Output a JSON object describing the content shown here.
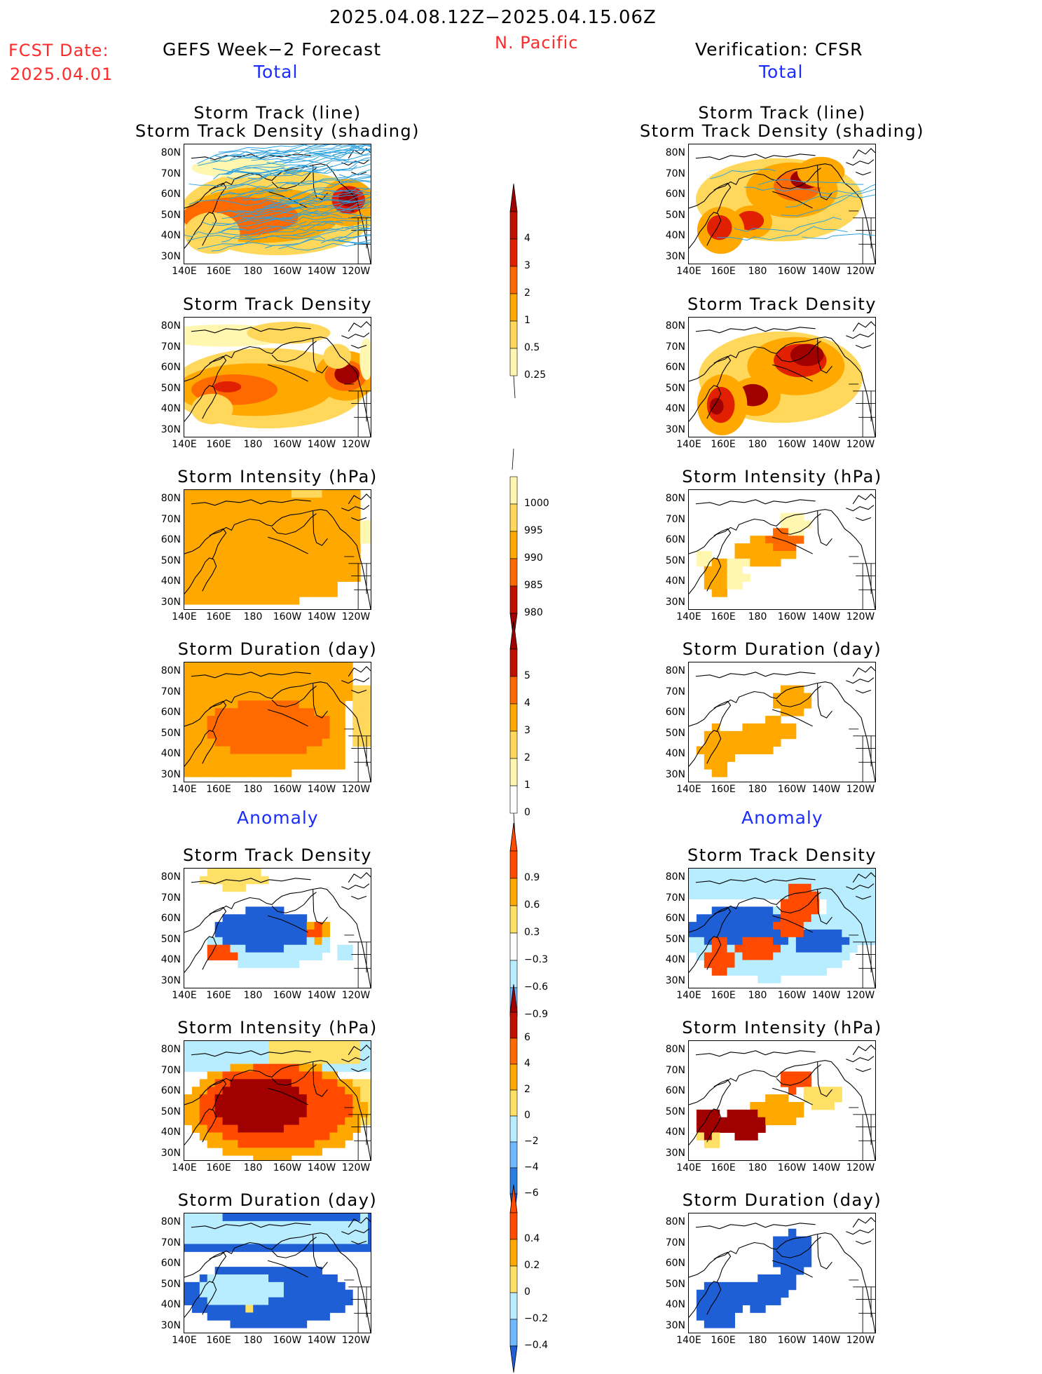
{
  "header": {
    "date_range": "2025.04.08.12Z−2025.04.15.06Z",
    "region": "N. Pacific",
    "fcst_label": "FCST Date:",
    "fcst_date": "2025.04.01",
    "left_title": "GEFS Week−2 Forecast",
    "right_title": "Verification: CFSR"
  },
  "sections": {
    "total": "Total",
    "anomaly": "Anomaly"
  },
  "panel_titles": {
    "track_line": "Storm Track (line)",
    "track_shading": "Storm Track Density (shading)",
    "track_density": "Storm Track Density",
    "intensity": "Storm Intensity (hPa)",
    "duration": "Storm Duration (day)"
  },
  "axes": {
    "lat_labels": [
      "80N",
      "70N",
      "60N",
      "50N",
      "40N",
      "30N"
    ],
    "lon_labels": [
      "140E",
      "160E",
      "180",
      "160W",
      "140W",
      "120W"
    ]
  },
  "colorbars": {
    "density": [
      "4",
      "3",
      "2",
      "1",
      "0.5",
      "0.25"
    ],
    "intensity": [
      "1000",
      "995",
      "990",
      "985",
      "980"
    ],
    "duration": [
      "5",
      "4",
      "3",
      "2",
      "1",
      "0"
    ],
    "anom_density": [
      "0.9",
      "0.6",
      "0.3",
      "−0.3",
      "−0.6",
      "−0.9"
    ],
    "anom_intensity": [
      "6",
      "4",
      "2",
      "0",
      "−2",
      "−4",
      "−6"
    ],
    "anom_duration": [
      "0.4",
      "0.2",
      "0",
      "−0.2",
      "−0.4"
    ]
  },
  "palette": {
    "warm": [
      "#fff7b0",
      "#ffd75a",
      "#ffa800",
      "#ff6a00",
      "#e02000",
      "#a00000"
    ],
    "anom_warm": [
      "#ffe066",
      "#ffa800",
      "#ff4a00"
    ],
    "anom_cool": [
      "#b8ecff",
      "#6fb8ff",
      "#1e5fd6"
    ],
    "track_line": "#2aa0e0"
  }
}
